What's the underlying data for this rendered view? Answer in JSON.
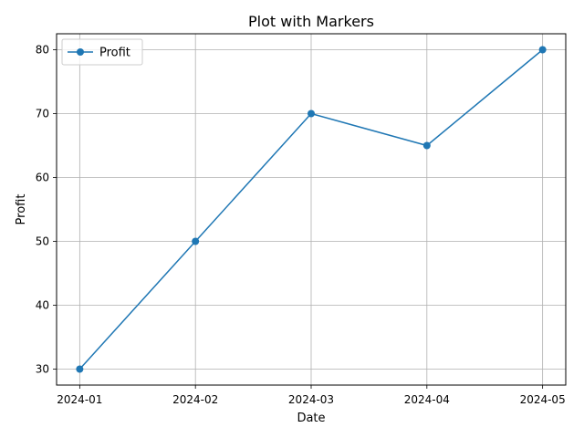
{
  "chart_data": {
    "type": "line",
    "title": "Plot with Markers",
    "xlabel": "Date",
    "ylabel": "Profit",
    "x": [
      "2024-01",
      "2024-02",
      "2024-03",
      "2024-04",
      "2024-05"
    ],
    "series": [
      {
        "name": "Profit",
        "values": [
          30,
          50,
          70,
          65,
          80
        ],
        "color": "#1f77b4",
        "marker": "circle"
      }
    ],
    "ylim": [
      27.5,
      82.5
    ],
    "yticks": [
      30,
      40,
      50,
      60,
      70,
      80
    ],
    "grid": true,
    "legend": "top-left"
  }
}
